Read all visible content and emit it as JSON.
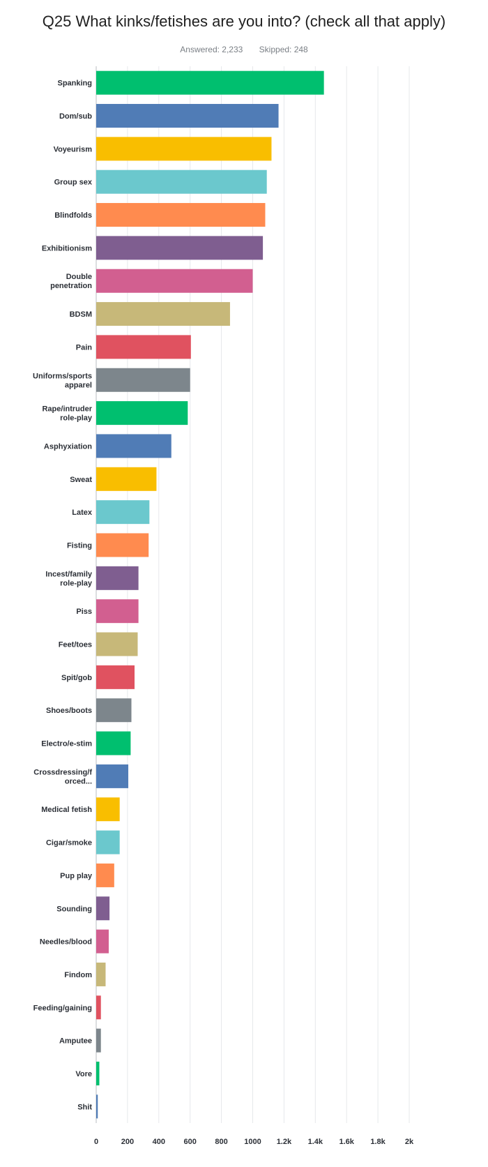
{
  "header": {
    "title": "Q25 What kinks/fetishes are you into? (check all that apply)",
    "answered": "Answered: 2,233",
    "skipped": "Skipped: 248"
  },
  "chart_data": {
    "type": "bar",
    "orientation": "horizontal",
    "grid": true,
    "xlim": [
      0,
      2000
    ],
    "ticks": [
      0,
      200,
      400,
      600,
      800,
      1000,
      1200,
      1400,
      1600,
      1800,
      2000
    ],
    "tick_labels": [
      "0",
      "200",
      "400",
      "600",
      "800",
      "1000",
      "1.2k",
      "1.4k",
      "1.6k",
      "1.8k",
      "2k"
    ],
    "palette": [
      "#00bf6f",
      "#507cb6",
      "#f9be00",
      "#6bc8cd",
      "#ff8b4f",
      "#7f5e90",
      "#d25f90",
      "#c7b879",
      "#e05260",
      "#7d868c"
    ],
    "categories": [
      [
        "Spanking"
      ],
      [
        "Dom/sub"
      ],
      [
        "Voyeurism"
      ],
      [
        "Group sex"
      ],
      [
        "Blindfolds"
      ],
      [
        "Exhibitionism"
      ],
      [
        "Double",
        "penetration"
      ],
      [
        "BDSM"
      ],
      [
        "Pain"
      ],
      [
        "Uniforms/sports",
        "apparel"
      ],
      [
        "Rape/intruder",
        "role-play"
      ],
      [
        "Asphyxiation"
      ],
      [
        "Sweat"
      ],
      [
        "Latex"
      ],
      [
        "Fisting"
      ],
      [
        "Incest/family",
        "role-play"
      ],
      [
        "Piss"
      ],
      [
        "Feet/toes"
      ],
      [
        "Spit/gob"
      ],
      [
        "Shoes/boots"
      ],
      [
        "Electro/e-stim"
      ],
      [
        "Crossdressing/f",
        "orced..."
      ],
      [
        "Medical fetish"
      ],
      [
        "Cigar/smoke"
      ],
      [
        "Pup play"
      ],
      [
        "Sounding"
      ],
      [
        "Needles/blood"
      ],
      [
        "Findom"
      ],
      [
        "Feeding/gaining"
      ],
      [
        "Amputee"
      ],
      [
        "Vore"
      ],
      [
        "Shit"
      ]
    ],
    "values": [
      1455,
      1165,
      1120,
      1090,
      1080,
      1065,
      1000,
      855,
      605,
      600,
      585,
      480,
      385,
      340,
      335,
      270,
      270,
      265,
      245,
      225,
      220,
      205,
      150,
      150,
      115,
      85,
      80,
      60,
      30,
      30,
      20,
      10
    ]
  }
}
